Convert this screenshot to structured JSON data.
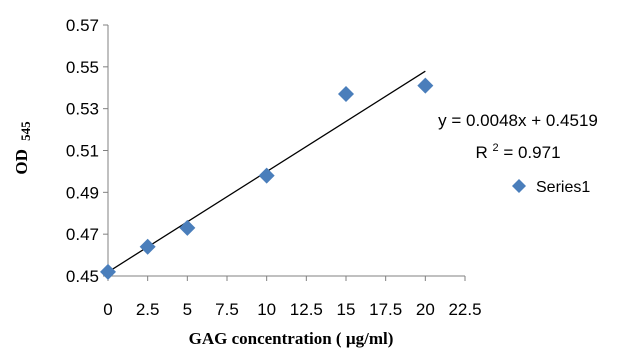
{
  "chart_data": {
    "type": "scatter",
    "xlabel": "GAG concentration ( µg/ml)",
    "ylabel": "OD",
    "ylabel_subscript": "545",
    "xlim": [
      0,
      22.5
    ],
    "ylim": [
      0.45,
      0.57
    ],
    "xticks": [
      "0",
      "2.5",
      "5",
      "7.5",
      "10",
      "12.5",
      "15",
      "17.5",
      "20",
      "22.5"
    ],
    "yticks": [
      "0.45",
      "0.47",
      "0.49",
      "0.51",
      "0.53",
      "0.55",
      "0.57"
    ],
    "grid": false,
    "legend_position": "right",
    "series": [
      {
        "name": "Series1",
        "color": "#4a7ebb",
        "marker": "diamond",
        "x": [
          0,
          2.5,
          5,
          10,
          15,
          20
        ],
        "y": [
          0.452,
          0.464,
          0.473,
          0.498,
          0.537,
          0.541
        ]
      }
    ],
    "trendline": {
      "slope": 0.0048,
      "intercept": 0.4519,
      "color": "#000000",
      "x_range": [
        0,
        20
      ]
    },
    "annotations": {
      "equation": "y = 0.0048x + 0.4519",
      "r_squared_prefix": "R",
      "r_squared_sup": "2",
      "r_squared_value": " = 0.971"
    }
  }
}
